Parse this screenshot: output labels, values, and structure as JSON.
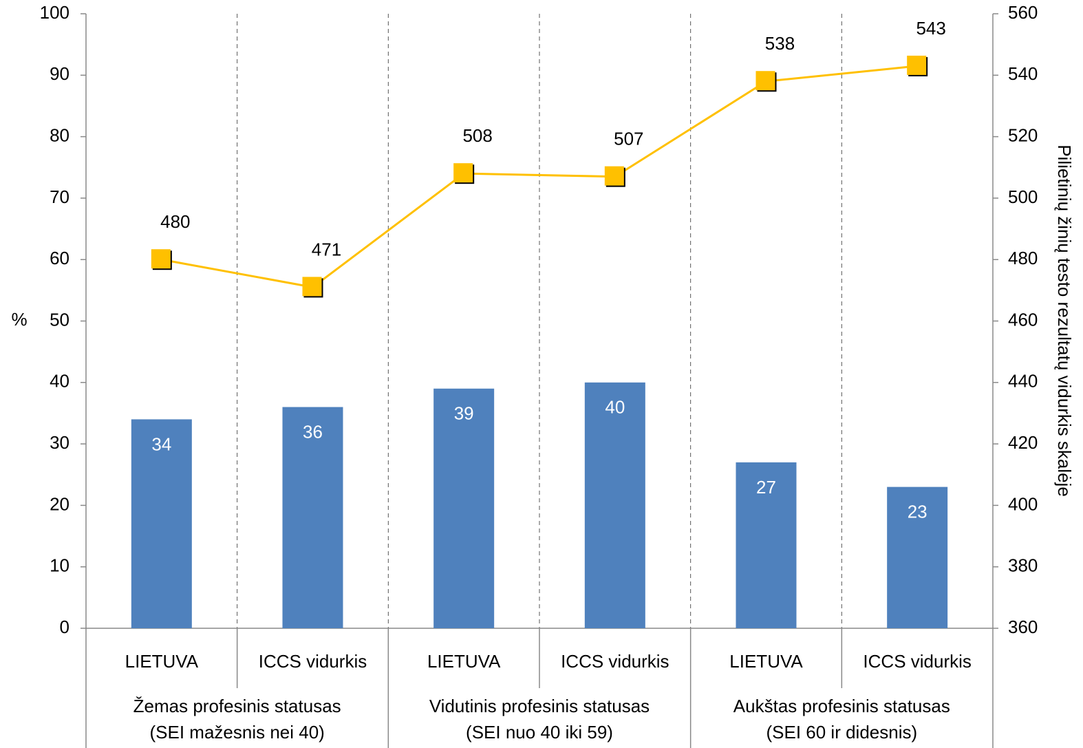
{
  "chart_data": {
    "type": "bar",
    "categories": [
      "LIETUVA",
      "ICCS vidurkis",
      "LIETUVA",
      "ICCS vidurkis",
      "LIETUVA",
      "ICCS vidurkis"
    ],
    "groups": [
      [
        "Žemas profesinis statusas",
        "(SEI mažesnis nei 40)"
      ],
      [
        "Vidutinis profesinis statusas",
        "(SEI nuo 40 iki 59)"
      ],
      [
        "Aukštas profesinis statusas",
        "(SEI 60 ir didesnis)"
      ]
    ],
    "series": [
      {
        "type": "bar",
        "color": "#4f81bd",
        "values": [
          34,
          36,
          39,
          40,
          27,
          23
        ]
      },
      {
        "type": "line",
        "axis": "y2",
        "color": "#ffc000",
        "values": [
          480,
          471,
          508,
          507,
          538,
          543
        ]
      }
    ],
    "ylabel": "%",
    "y2label": "Pilietinių žinių testo rezultatų vidurkis skalėje",
    "ylim": [
      0,
      100
    ],
    "yticks": [
      0,
      10,
      20,
      30,
      40,
      50,
      60,
      70,
      80,
      90,
      100
    ],
    "y2lim": [
      360,
      560
    ],
    "y2ticks": [
      360,
      380,
      400,
      420,
      440,
      460,
      480,
      500,
      520,
      540,
      560
    ],
    "grid": false
  }
}
